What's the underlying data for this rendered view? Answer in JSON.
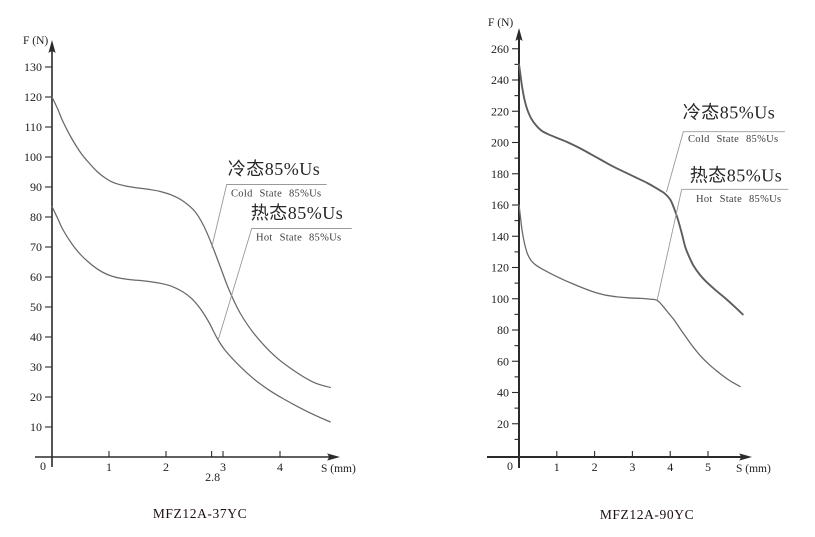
{
  "colors": {
    "background": "#ffffff",
    "axis": "#2b2b2b",
    "curve": "#686868",
    "leader": "#9a9a9a",
    "text": "#1e1e1e"
  },
  "chart_data": [
    {
      "type": "line",
      "title": "MFZ12A-37YC",
      "xlabel": "S (mm)",
      "ylabel": "F (N)",
      "origin_label": "0",
      "xlim": [
        0,
        5.1
      ],
      "ylim": [
        0,
        140
      ],
      "grid": false,
      "x_ticks": [
        1,
        2,
        3,
        4
      ],
      "x_extra_ticks": [
        {
          "value": 2.8,
          "label": "2.8"
        }
      ],
      "y_ticks_labeled": [
        10,
        20,
        30,
        40,
        50,
        60,
        70,
        80,
        90,
        100,
        110,
        120,
        130
      ],
      "y_ticks_minor": [],
      "series": [
        {
          "name": "cold",
          "label_cn": "冷态85%Us",
          "label_en": "Cold State 85%Us",
          "color": "#686868",
          "points": [
            [
              0,
              120
            ],
            [
              0.1,
              116
            ],
            [
              0.2,
              111.5
            ],
            [
              0.35,
              106
            ],
            [
              0.5,
              101.5
            ],
            [
              0.65,
              98
            ],
            [
              0.8,
              95
            ],
            [
              0.95,
              92.8
            ],
            [
              1.1,
              91.3
            ],
            [
              1.3,
              90.3
            ],
            [
              1.5,
              89.7
            ],
            [
              1.7,
              89.2
            ],
            [
              1.9,
              88.5
            ],
            [
              2.1,
              87.3
            ],
            [
              2.3,
              85.3
            ],
            [
              2.5,
              82
            ],
            [
              2.65,
              77.5
            ],
            [
              2.8,
              71
            ],
            [
              2.95,
              63.5
            ],
            [
              3.1,
              56
            ],
            [
              3.3,
              48
            ],
            [
              3.55,
              41
            ],
            [
              3.9,
              33.8
            ],
            [
              4.25,
              28.7
            ],
            [
              4.6,
              24.8
            ],
            [
              4.88,
              23.2
            ]
          ]
        },
        {
          "name": "hot",
          "label_cn": "热态85%Us",
          "label_en": "Hot State 85%Us",
          "color": "#686868",
          "points": [
            [
              0,
              83.5
            ],
            [
              0.1,
              79.5
            ],
            [
              0.2,
              75.5
            ],
            [
              0.35,
              71
            ],
            [
              0.5,
              67.5
            ],
            [
              0.65,
              64.8
            ],
            [
              0.8,
              62.6
            ],
            [
              0.95,
              61
            ],
            [
              1.1,
              60
            ],
            [
              1.3,
              59.3
            ],
            [
              1.5,
              58.9
            ],
            [
              1.7,
              58.5
            ],
            [
              1.9,
              57.9
            ],
            [
              2.1,
              56.9
            ],
            [
              2.3,
              55
            ],
            [
              2.45,
              52.8
            ],
            [
              2.6,
              49.5
            ],
            [
              2.75,
              45
            ],
            [
              2.9,
              39.5
            ],
            [
              3.05,
              35.3
            ],
            [
              3.3,
              30.2
            ],
            [
              3.55,
              25.9
            ],
            [
              3.8,
              22.4
            ],
            [
              4.05,
              19.5
            ],
            [
              4.35,
              16.4
            ],
            [
              4.65,
              13.6
            ],
            [
              4.88,
              11.7
            ]
          ]
        }
      ]
    },
    {
      "type": "line",
      "title": "MFZ12A-90YC",
      "xlabel": "S (mm)",
      "ylabel": "F (N)",
      "origin_label": "0",
      "xlim": [
        0,
        6.1
      ],
      "ylim": [
        0,
        275
      ],
      "grid": false,
      "x_ticks": [
        1,
        2,
        3,
        4,
        5
      ],
      "x_extra_ticks": [],
      "y_ticks_labeled": [
        20,
        40,
        60,
        80,
        100,
        120,
        140,
        160,
        180,
        200,
        220,
        240,
        260
      ],
      "y_ticks_minor": [
        10,
        30,
        50,
        70,
        90,
        110,
        130,
        150,
        170,
        190,
        210,
        230,
        250
      ],
      "series": [
        {
          "name": "cold",
          "label_cn": "冷态85%Us",
          "label_en": "Cold State 85%Us",
          "color": "#5d5d5d",
          "points": [
            [
              0,
              250
            ],
            [
              0.04,
              243
            ],
            [
              0.08,
              236
            ],
            [
              0.14,
              228
            ],
            [
              0.22,
              221
            ],
            [
              0.32,
              215.5
            ],
            [
              0.45,
              211
            ],
            [
              0.6,
              207.5
            ],
            [
              0.8,
              205
            ],
            [
              1.05,
              202.5
            ],
            [
              1.3,
              200
            ],
            [
              1.6,
              196.5
            ],
            [
              1.9,
              192.5
            ],
            [
              2.2,
              188.5
            ],
            [
              2.5,
              184.5
            ],
            [
              2.8,
              181
            ],
            [
              3.1,
              177.5
            ],
            [
              3.4,
              174
            ],
            [
              3.65,
              170.5
            ],
            [
              3.85,
              167.5
            ],
            [
              4.0,
              163.5
            ],
            [
              4.1,
              158
            ],
            [
              4.2,
              151
            ],
            [
              4.3,
              142.5
            ],
            [
              4.4,
              133
            ],
            [
              4.5,
              127
            ],
            [
              4.62,
              121
            ],
            [
              4.78,
              115.5
            ],
            [
              4.95,
              111
            ],
            [
              5.2,
              105.5
            ],
            [
              5.45,
              100.5
            ],
            [
              5.7,
              95
            ],
            [
              5.92,
              90
            ]
          ]
        },
        {
          "name": "hot",
          "label_cn": "热态85%Us",
          "label_en": "Hot State 85%Us",
          "color": "#6a6a6a",
          "points": [
            [
              0,
              160
            ],
            [
              0.04,
              152
            ],
            [
              0.08,
              144
            ],
            [
              0.14,
              136
            ],
            [
              0.22,
              129
            ],
            [
              0.32,
              124.5
            ],
            [
              0.45,
              121.5
            ],
            [
              0.6,
              119.2
            ],
            [
              0.85,
              116
            ],
            [
              1.1,
              113
            ],
            [
              1.4,
              109.8
            ],
            [
              1.7,
              106.8
            ],
            [
              2.0,
              104.2
            ],
            [
              2.3,
              102.3
            ],
            [
              2.6,
              101.2
            ],
            [
              2.9,
              100.6
            ],
            [
              3.2,
              100.2
            ],
            [
              3.45,
              99.8
            ],
            [
              3.65,
              99
            ],
            [
              3.8,
              95.5
            ],
            [
              3.95,
              91
            ],
            [
              4.1,
              86.5
            ],
            [
              4.3,
              79.5
            ],
            [
              4.55,
              71
            ],
            [
              4.8,
              63.5
            ],
            [
              5.05,
              57.5
            ],
            [
              5.3,
              52.5
            ],
            [
              5.55,
              48
            ],
            [
              5.85,
              43.8
            ]
          ]
        }
      ]
    }
  ]
}
